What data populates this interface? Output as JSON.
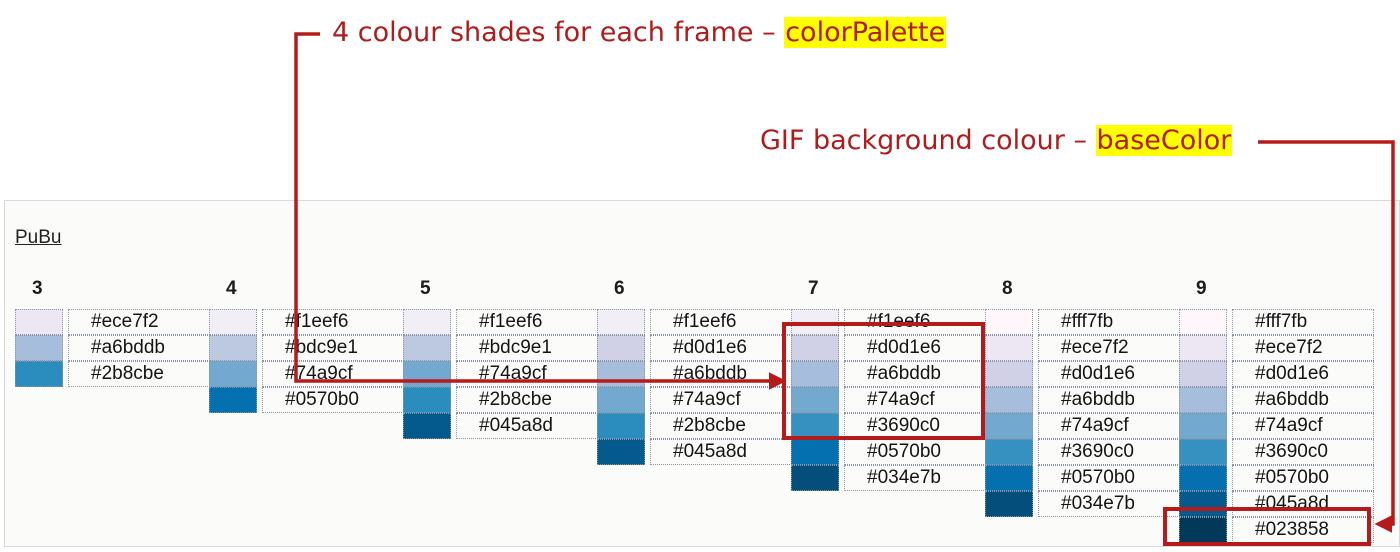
{
  "annotations": {
    "palette_text": "4 colour shades for each frame – ",
    "palette_key": "colorPalette",
    "base_text": "GIF background colour – ",
    "base_key": "baseColor",
    "annotation_color": "#b51b1b",
    "highlight_color": "#ffff00"
  },
  "scheme": {
    "name": "PuBu",
    "groups": [
      {
        "count": "3",
        "colors": [
          "#ece7f2",
          "#a6bddb",
          "#2b8cbe"
        ]
      },
      {
        "count": "4",
        "colors": [
          "#f1eef6",
          "#bdc9e1",
          "#74a9cf",
          "#0570b0"
        ]
      },
      {
        "count": "5",
        "colors": [
          "#f1eef6",
          "#bdc9e1",
          "#74a9cf",
          "#2b8cbe",
          "#045a8d"
        ]
      },
      {
        "count": "6",
        "colors": [
          "#f1eef6",
          "#d0d1e6",
          "#a6bddb",
          "#74a9cf",
          "#2b8cbe",
          "#045a8d"
        ]
      },
      {
        "count": "7",
        "colors": [
          "#f1eef6",
          "#d0d1e6",
          "#a6bddb",
          "#74a9cf",
          "#3690c0",
          "#0570b0",
          "#034e7b"
        ]
      },
      {
        "count": "8",
        "colors": [
          "#fff7fb",
          "#ece7f2",
          "#d0d1e6",
          "#a6bddb",
          "#74a9cf",
          "#3690c0",
          "#0570b0",
          "#034e7b"
        ]
      },
      {
        "count": "9",
        "colors": [
          "#fff7fb",
          "#ece7f2",
          "#d0d1e6",
          "#a6bddb",
          "#74a9cf",
          "#3690c0",
          "#0570b0",
          "#045a8d",
          "#023858"
        ]
      }
    ]
  }
}
